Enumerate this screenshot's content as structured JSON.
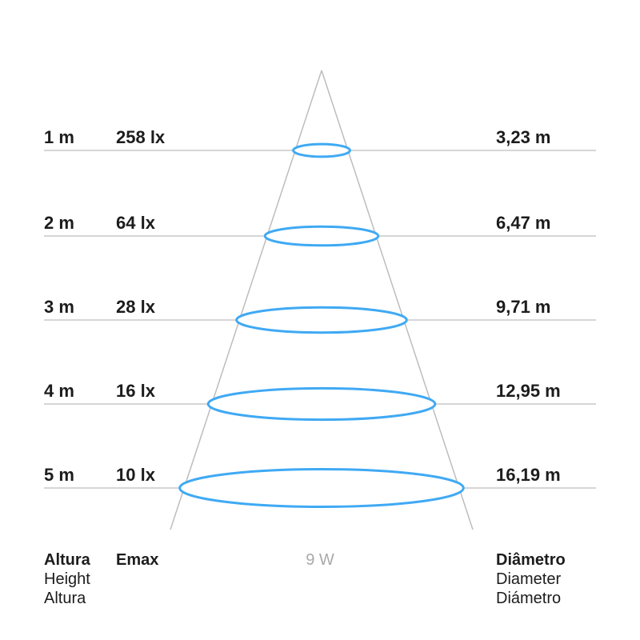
{
  "power_label": "9 W",
  "columns": {
    "height_header": [
      "Altura",
      "Height",
      "Altura"
    ],
    "emax_header": "Emax",
    "diameter_header": [
      "Diâmetro",
      "Diameter",
      "Diámetro"
    ]
  },
  "rows": [
    {
      "height": "1 m",
      "emax": "258 lx",
      "diameter": "3,23 m"
    },
    {
      "height": "2 m",
      "emax": "64 lx",
      "diameter": "6,47 m"
    },
    {
      "height": "3 m",
      "emax": "28 lx",
      "diameter": "9,71 m"
    },
    {
      "height": "4 m",
      "emax": "16 lx",
      "diameter": "12,95 m"
    },
    {
      "height": "5 m",
      "emax": "10 lx",
      "diameter": "16,19 m"
    }
  ],
  "chart_data": {
    "type": "table",
    "title": "Light beam spread cone (9 W)",
    "columns": [
      "Height / Altura (m)",
      "Emax (lx)",
      "Diameter / Diámetro (m)"
    ],
    "values": [
      [
        1,
        258,
        3.23
      ],
      [
        2,
        64,
        6.47
      ],
      [
        3,
        28,
        9.71
      ],
      [
        4,
        16,
        12.95
      ],
      [
        5,
        10,
        16.19
      ]
    ]
  },
  "colors": {
    "ellipse_stroke": "#3fa9f4",
    "grid_line": "#c9c9c9",
    "cone_line": "#bdbdbd",
    "text": "#1c1c1c",
    "muted_text": "#a9a9a9"
  }
}
